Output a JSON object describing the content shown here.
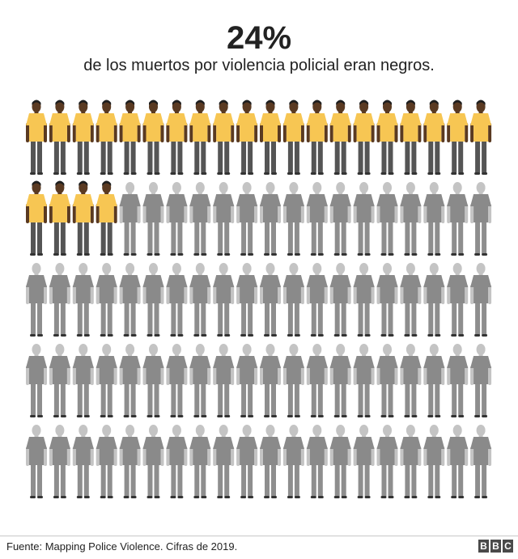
{
  "headline": "24%",
  "subtitle": "de los muertos por violencia policial eran negros.",
  "source": "Fuente: Mapping Police Violence. Cifras de 2019.",
  "logo": [
    "B",
    "B",
    "C"
  ],
  "colors": {
    "accent": "#f2b630",
    "highlight_shirt": "#f7c653",
    "highlight_skin": "#5a3a22",
    "highlight_pants": "#555555",
    "other_shirt": "#8a8a8a",
    "other_skin": "#c4c4c4",
    "other_pants": "#8e8e8e"
  },
  "chart_data": {
    "type": "waffle",
    "total": 100,
    "highlighted": 24,
    "value_percent": 24,
    "rows": 5,
    "columns": 20,
    "highlight_label": "negros",
    "icon": "person-icon"
  }
}
